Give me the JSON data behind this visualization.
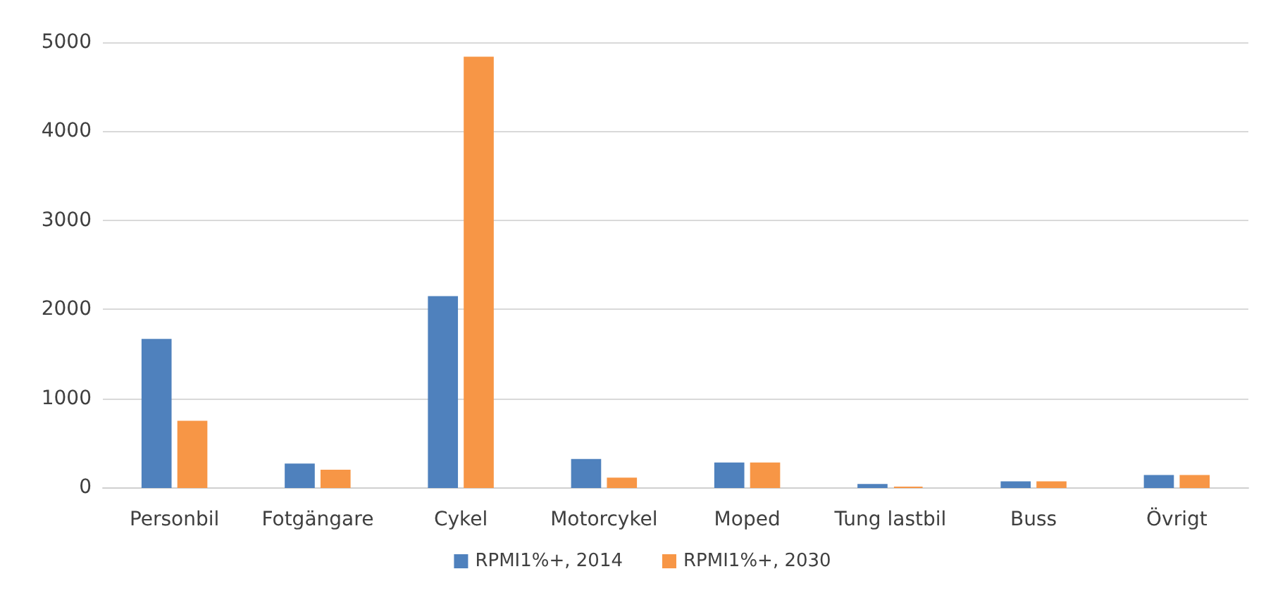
{
  "chart_data": {
    "type": "bar",
    "categories": [
      "Personbil",
      "Fotgängare",
      "Cykel",
      "Motorcykel",
      "Moped",
      "Tung lastbil",
      "Buss",
      "Övrigt"
    ],
    "series": [
      {
        "name": "RPMI1%+, 2014",
        "color": "#4f81bd",
        "values": [
          1660,
          260,
          2140,
          310,
          270,
          30,
          60,
          130
        ]
      },
      {
        "name": "RPMI1%+, 2030",
        "color": "#f79646",
        "values": [
          740,
          190,
          4830,
          100,
          270,
          0,
          60,
          130
        ]
      }
    ],
    "ylim": [
      0,
      5000
    ],
    "yticks": [
      0,
      1000,
      2000,
      3000,
      4000,
      5000
    ],
    "grid": "y",
    "legend": "bottom"
  }
}
